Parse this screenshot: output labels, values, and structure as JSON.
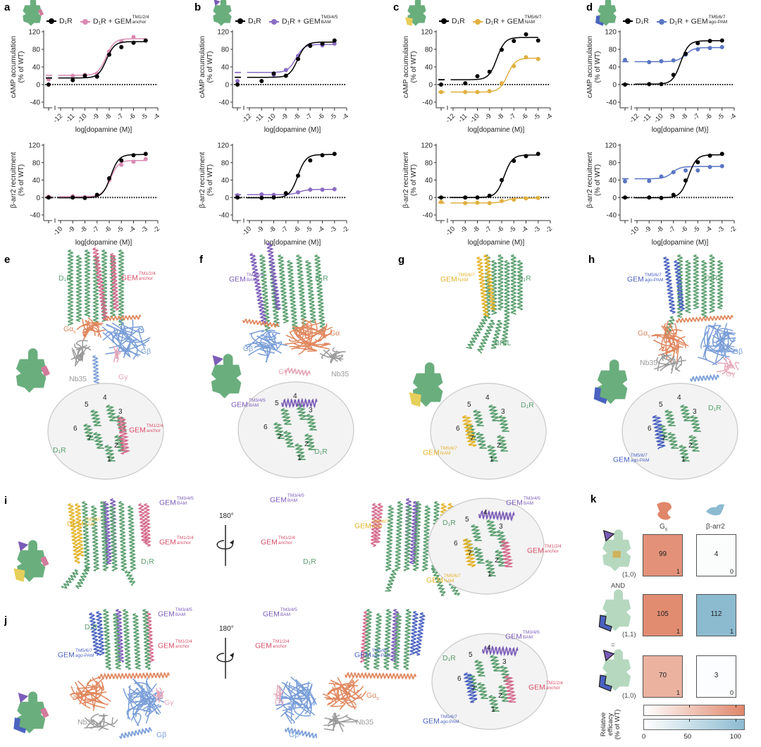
{
  "panels": {
    "a": "a",
    "b": "b",
    "c": "c",
    "d": "d",
    "e": "e",
    "f": "f",
    "g": "g",
    "h": "h",
    "i": "i",
    "j": "j",
    "k": "k"
  },
  "legend": {
    "d1r": "D₁R",
    "combo_prefix": "D₁R + GEM"
  },
  "gem": {
    "anchor": {
      "main": "GEM",
      "sup": "TM1/2/4",
      "sub": "anchor"
    },
    "bam": {
      "main": "GEM",
      "sup": "TM3/4/5",
      "sub": "BAM"
    },
    "nam": {
      "main": "GEM",
      "sup": "TM5/6/7",
      "sub": "NAM"
    },
    "agopam": {
      "main": "GEM",
      "sup": "TM5/6/7",
      "sub": "ago-PAM"
    }
  },
  "struct_labels": {
    "d1r": "D₁R",
    "ga": "Gα",
    "gas_main": "Gα",
    "gas_sub": "s",
    "gb": "Gβ",
    "gg": "Gγ",
    "nb35": "Nb35",
    "bril": "BRIL",
    "tm": [
      "1",
      "2",
      "3",
      "4",
      "5",
      "6",
      "7"
    ],
    "rotation": "180°"
  },
  "colors": {
    "d1r": "#5a9e6f",
    "anchor": "#d46a8c",
    "bam": "#7b5cb8",
    "nam": "#e3b32a",
    "agopam": "#4a62c0",
    "galpha": "#e0875e",
    "gbeta": "#7a9ed8",
    "ggamma": "#e6a8ba",
    "nb35": "#9a9a9a",
    "wt": "#000000"
  },
  "chart_data": [
    {
      "panel": "a",
      "type": "line",
      "ylabel": "cAMP accumulation",
      "ylabel_unit": "(% of WT)",
      "xlabel": "log[dopamine (M)]",
      "xlim": [
        -12,
        -4
      ],
      "ylim": [
        -40,
        120
      ],
      "xticks": [
        "-12",
        "-11",
        "-10",
        "-9",
        "-8",
        "-7",
        "-6",
        "-5",
        "-4"
      ],
      "yticks": [
        "-40",
        "0",
        "40",
        "80",
        "120"
      ],
      "series": [
        {
          "name": "D₁R",
          "color": "#000000",
          "points": [
            [
              "vehicle",
              0
            ],
            [
              -11,
              10
            ],
            [
              -10,
              20
            ],
            [
              -9,
              18
            ],
            [
              -8,
              68
            ],
            [
              -7,
              85
            ],
            [
              -6,
              95
            ],
            [
              -5,
              100
            ]
          ]
        },
        {
          "name": "D₁R + GEM TM1/2/4 anchor",
          "color": "#d98bb3",
          "points": [
            [
              "vehicle",
              12
            ],
            [
              -11,
              20
            ],
            [
              -10,
              22
            ],
            [
              -9,
              25
            ],
            [
              -8,
              75
            ],
            [
              -7,
              98
            ],
            [
              -6,
              108
            ],
            [
              -5,
              100
            ]
          ]
        }
      ]
    },
    {
      "panel": "a",
      "type": "line",
      "ylabel": "β-arr2 recruitment",
      "ylabel_unit": "(% of WT)",
      "xlabel": "log[dopamine (M)]",
      "xlim": [
        -10,
        -2
      ],
      "ylim": [
        -40,
        120
      ],
      "xticks": [
        "-10",
        "-9",
        "-8",
        "-7",
        "-6",
        "-5",
        "-4",
        "-3",
        "-2"
      ],
      "yticks": [
        "-40",
        "0",
        "40",
        "80",
        "120"
      ],
      "series": [
        {
          "name": "D₁R",
          "color": "#000000",
          "points": [
            [
              "vehicle",
              0
            ],
            [
              -9,
              0
            ],
            [
              -8,
              -1
            ],
            [
              -7,
              6
            ],
            [
              -6,
              44
            ],
            [
              -5,
              85
            ],
            [
              -4,
              97
            ],
            [
              -3,
              100
            ]
          ]
        },
        {
          "name": "D₁R + GEM TM1/2/4 anchor",
          "color": "#d98bb3",
          "points": [
            [
              "vehicle",
              2
            ],
            [
              -9,
              3
            ],
            [
              -8,
              1
            ],
            [
              -7,
              5
            ],
            [
              -6,
              40
            ],
            [
              -5,
              75
            ],
            [
              -4,
              82
            ],
            [
              -3,
              88
            ]
          ]
        }
      ]
    },
    {
      "panel": "b",
      "type": "line",
      "ylabel": "cAMP accumulation",
      "ylabel_unit": "(% of WT)",
      "xlabel": "log[dopamine (M)]",
      "xlim": [
        -12,
        -4
      ],
      "ylim": [
        -40,
        120
      ],
      "xticks": [
        "-12",
        "-11",
        "-10",
        "-9",
        "-8",
        "-7",
        "-6",
        "-5",
        "-4"
      ],
      "yticks": [
        "-40",
        "0",
        "40",
        "80",
        "120"
      ],
      "series": [
        {
          "name": "D₁R",
          "color": "#000000",
          "points": [
            [
              "vehicle",
              0
            ],
            [
              -11,
              8
            ],
            [
              -10,
              25
            ],
            [
              -9,
              20
            ],
            [
              -8,
              58
            ],
            [
              -7,
              88
            ],
            [
              -6,
              93
            ],
            [
              -5,
              100
            ]
          ]
        },
        {
          "name": "D₁R + GEM TM3/4/5 BAM",
          "color": "#8a6cc4",
          "points": [
            [
              "vehicle",
              8
            ],
            [
              -10,
              22
            ],
            [
              -9,
              33
            ],
            [
              -8,
              65
            ],
            [
              -7,
              90
            ],
            [
              -6,
              89
            ],
            [
              -5,
              93
            ]
          ]
        }
      ]
    },
    {
      "panel": "b",
      "type": "line",
      "ylabel": "β-arr2 recruitment",
      "ylabel_unit": "(% of WT)",
      "xlabel": "log[dopamine (M)]",
      "xlim": [
        -10,
        -2
      ],
      "ylim": [
        -40,
        120
      ],
      "xticks": [
        "-10",
        "-9",
        "-8",
        "-7",
        "-6",
        "-5",
        "-4",
        "-3",
        "-2"
      ],
      "yticks": [
        "-40",
        "0",
        "40",
        "80",
        "120"
      ],
      "series": [
        {
          "name": "D₁R",
          "color": "#000000",
          "points": [
            [
              "vehicle",
              0
            ],
            [
              -9,
              -1
            ],
            [
              -8,
              0
            ],
            [
              -7,
              10
            ],
            [
              -6,
              50
            ],
            [
              -5,
              85
            ],
            [
              -4,
              97
            ],
            [
              -3,
              100
            ]
          ]
        },
        {
          "name": "D₁R + GEM TM3/4/5 BAM",
          "color": "#8a6cc4",
          "points": [
            [
              "vehicle",
              5
            ],
            [
              -9,
              7
            ],
            [
              -8,
              6
            ],
            [
              -7,
              8
            ],
            [
              -6,
              12
            ],
            [
              -5,
              18
            ],
            [
              -4,
              18
            ],
            [
              -3,
              19
            ]
          ]
        }
      ]
    },
    {
      "panel": "c",
      "type": "line",
      "ylabel": "cAMP accumulation",
      "ylabel_unit": "(% of WT)",
      "xlabel": "log[dopamine (M)]",
      "xlim": [
        -12,
        -4
      ],
      "ylim": [
        -40,
        120
      ],
      "xticks": [
        "-12",
        "-11",
        "-10",
        "-9",
        "-8",
        "-7",
        "-6",
        "-5",
        "-4"
      ],
      "yticks": [
        "-40",
        "0",
        "40",
        "80",
        "120"
      ],
      "series": [
        {
          "name": "D₁R",
          "color": "#000000",
          "points": [
            [
              "vehicle",
              0
            ],
            [
              -11,
              3
            ],
            [
              -10,
              19
            ],
            [
              -9,
              29
            ],
            [
              -8,
              79
            ],
            [
              -7,
              99
            ],
            [
              -6,
              114
            ],
            [
              -5,
              100
            ]
          ]
        },
        {
          "name": "D₁R + GEM TM5/6/7 NAM",
          "color": "#e0b040",
          "points": [
            [
              "vehicle",
              -17
            ],
            [
              -11,
              -17
            ],
            [
              -10,
              -17
            ],
            [
              -9,
              -15
            ],
            [
              -8,
              3
            ],
            [
              -7,
              42
            ],
            [
              -6,
              62
            ],
            [
              -5,
              58
            ]
          ]
        }
      ]
    },
    {
      "panel": "c",
      "type": "line",
      "ylabel": "β-arr2 recruitment",
      "ylabel_unit": "(% of WT)",
      "xlabel": "log[dopamine (M)]",
      "xlim": [
        -10,
        -2
      ],
      "ylim": [
        -40,
        120
      ],
      "xticks": [
        "-10",
        "-9",
        "-8",
        "-7",
        "-6",
        "-5",
        "-4",
        "-3",
        "-2"
      ],
      "yticks": [
        "-40",
        "0",
        "40",
        "80",
        "120"
      ],
      "series": [
        {
          "name": "D₁R",
          "color": "#000000",
          "points": [
            [
              "vehicle",
              0
            ],
            [
              -9,
              0
            ],
            [
              -8,
              0
            ],
            [
              -7,
              4
            ],
            [
              -6,
              40
            ],
            [
              -5,
              84
            ],
            [
              -4,
              95
            ],
            [
              -3,
              100
            ]
          ]
        },
        {
          "name": "D₁R + GEM TM5/6/7 NAM",
          "color": "#e0b040",
          "points": [
            [
              "vehicle",
              -10
            ],
            [
              -9,
              -13
            ],
            [
              -8,
              -12
            ],
            [
              -7,
              -13
            ],
            [
              -6,
              -8
            ],
            [
              -5,
              -5
            ],
            [
              -4,
              -2
            ],
            [
              -3,
              -1
            ]
          ]
        }
      ]
    },
    {
      "panel": "d",
      "type": "line",
      "ylabel": "cAMP accumulation",
      "ylabel_unit": "(% of WT)",
      "xlabel": "log[dopamine (M)]",
      "xlim": [
        -12,
        -4
      ],
      "ylim": [
        -40,
        120
      ],
      "xticks": [
        "-12",
        "-11",
        "-10",
        "-9",
        "-8",
        "-7",
        "-6",
        "-5",
        "-4"
      ],
      "yticks": [
        "-40",
        "0",
        "40",
        "80",
        "120"
      ],
      "series": [
        {
          "name": "D₁R",
          "color": "#000000",
          "points": [
            [
              "vehicle",
              0
            ],
            [
              -11,
              1
            ],
            [
              -10,
              1
            ],
            [
              -9,
              22
            ],
            [
              -8,
              70
            ],
            [
              -7,
              94
            ],
            [
              -6,
              99
            ],
            [
              -5,
              100
            ]
          ]
        },
        {
          "name": "D₁R + GEM TM5/6/7 ago-PAM",
          "color": "#5a76c4",
          "points": [
            [
              "vehicle",
              56
            ],
            [
              -11,
              51
            ],
            [
              -10,
              53
            ],
            [
              -9,
              55
            ],
            [
              -8,
              68
            ],
            [
              -7,
              80
            ],
            [
              -6,
              83
            ],
            [
              -5,
              85
            ]
          ]
        }
      ]
    },
    {
      "panel": "d",
      "type": "line",
      "ylabel": "β-arr2 recruitment",
      "ylabel_unit": "(% of WT)",
      "xlabel": "log[dopamine (M)]",
      "xlim": [
        -10,
        -2
      ],
      "ylim": [
        -40,
        120
      ],
      "xticks": [
        "-10",
        "-9",
        "-8",
        "-7",
        "-6",
        "-5",
        "-4",
        "-3",
        "-2"
      ],
      "yticks": [
        "-40",
        "0",
        "40",
        "80",
        "120"
      ],
      "series": [
        {
          "name": "D₁R",
          "color": "#000000",
          "points": [
            [
              "vehicle",
              0
            ],
            [
              -9,
              0
            ],
            [
              -8,
              -1
            ],
            [
              -7,
              6
            ],
            [
              -6,
              39
            ],
            [
              -5,
              81
            ],
            [
              -4,
              96
            ],
            [
              -3,
              100
            ]
          ]
        },
        {
          "name": "D₁R + GEM TM5/6/7 ago-PAM",
          "color": "#5a76c4",
          "points": [
            [
              "vehicle",
              37
            ],
            [
              -9,
              38
            ],
            [
              -8,
              48
            ],
            [
              -7,
              58
            ],
            [
              -6,
              62
            ],
            [
              -5,
              62
            ],
            [
              -4,
              70
            ],
            [
              -3,
              72
            ]
          ]
        }
      ]
    }
  ],
  "heatmap": {
    "type": "heatmap",
    "columns": [
      {
        "main": "G",
        "sub": "s"
      },
      {
        "main": "β-arr2"
      }
    ],
    "rows": [
      {
        "state": "(1,0)",
        "values": [
          99,
          4
        ],
        "binary": [
          "1",
          "0"
        ]
      },
      {
        "state": "(1,1)",
        "values": [
          105,
          112
        ],
        "binary": [
          "1",
          "1"
        ]
      },
      {
        "state": "(1,0)",
        "values": [
          70,
          3
        ],
        "binary": [
          "1",
          "0"
        ]
      }
    ],
    "connectors": [
      "AND",
      "="
    ],
    "colorbar": {
      "label": [
        "Relative",
        "efficacy",
        "(% of WT)"
      ],
      "ticks": [
        "0",
        "50",
        "100"
      ],
      "range": [
        0,
        110
      ],
      "gs_color": "#e0866a",
      "barr_color": "#8cbbd0"
    }
  }
}
